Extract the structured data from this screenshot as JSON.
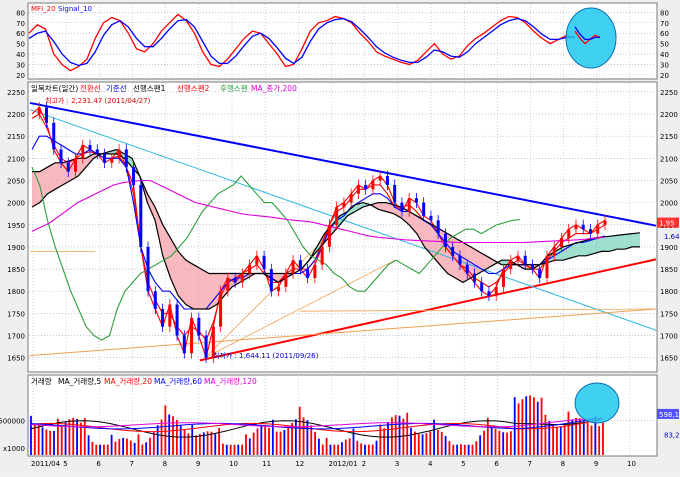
{
  "colors": {
    "panel_bg": "#ffffff",
    "outer_bg": "#efefef",
    "grid": "#9aa6c8",
    "red": "#ff0000",
    "blue": "#0000ff",
    "green": "#2e9e3e",
    "black": "#000000",
    "magenta": "#e000e0",
    "cyan_line": "#30b8e0",
    "orange_line": "#f0a050",
    "cloud_red": "#f5a0a8",
    "cloud_teal": "#7fd4c0",
    "cyan_fill": "#1ec8f0"
  },
  "chart_data": [
    {
      "panel": "oscillator",
      "type": "line",
      "title": "MFI_20  Signal_10",
      "legend": [
        "MFI_20",
        "Signal_10"
      ],
      "ylim": [
        17,
        88
      ],
      "yticks": [
        20,
        30,
        40,
        50,
        60,
        70,
        80
      ],
      "series": [
        {
          "name": "MFI_20",
          "color": "red",
          "values": [
            60,
            68,
            64,
            40,
            30,
            24,
            28,
            35,
            55,
            70,
            75,
            72,
            60,
            45,
            42,
            50,
            62,
            70,
            78,
            72,
            60,
            42,
            30,
            28,
            35,
            45,
            55,
            62,
            60,
            50,
            40,
            28,
            30,
            45,
            62,
            70,
            72,
            76,
            74,
            70,
            60,
            52,
            42,
            38,
            35,
            32,
            30,
            34,
            42,
            50,
            40,
            35,
            38,
            48,
            55,
            60,
            66,
            72,
            76,
            75,
            70,
            62,
            55,
            50,
            54,
            58,
            56
          ]
        },
        {
          "name": "Signal_10",
          "color": "blue",
          "values": [
            55,
            60,
            62,
            52,
            40,
            32,
            29,
            31,
            42,
            58,
            68,
            72,
            66,
            55,
            47,
            47,
            55,
            64,
            72,
            73,
            66,
            52,
            38,
            31,
            31,
            38,
            48,
            57,
            60,
            55,
            46,
            36,
            31,
            37,
            52,
            64,
            70,
            73,
            74,
            71,
            64,
            56,
            47,
            41,
            37,
            34,
            32,
            32,
            37,
            44,
            42,
            38,
            37,
            42,
            50,
            56,
            62,
            68,
            72,
            74,
            72,
            66,
            59,
            54,
            54,
            56,
            56
          ]
        }
      ],
      "annotations": [
        {
          "type": "circle",
          "color": "#1ec8f0"
        }
      ]
    },
    {
      "panel": "price",
      "type": "line",
      "title": "일목차트(일간)  전환선  기준선  선행스팬1  선행스팬2  후행스팬  MA_종가,200",
      "legend": [
        "일목차트(일간)",
        "전환선",
        "기준선",
        "선행스팬1",
        "선행스팬2",
        "후행스팬",
        "MA_종가,200"
      ],
      "ylim": [
        1620,
        2270
      ],
      "yticks": [
        1650,
        1700,
        1750,
        1800,
        1850,
        1900,
        1950,
        2000,
        2050,
        2100,
        2150,
        2200,
        2250
      ],
      "high_label": "최고가 : 2,231.47 (2011/04/27)",
      "low_label": "최저가 : 1,644.11 (2011/09/26)",
      "last_value_labels": [
        "1,95",
        "1.64"
      ],
      "series": [
        {
          "name": "종가",
          "color": "red",
          "values": [
            2200,
            2215,
            2180,
            2120,
            2090,
            2070,
            2100,
            2130,
            2120,
            2110,
            2090,
            2100,
            2120,
            2080,
            2040,
            1900,
            1800,
            1760,
            1720,
            1770,
            1700,
            1660,
            1740,
            1700,
            1650,
            1720,
            1800,
            1830,
            1820,
            1840,
            1860,
            1880,
            1850,
            1800,
            1810,
            1840,
            1870,
            1850,
            1830,
            1860,
            1900,
            1950,
            1990,
            2000,
            2020,
            2040,
            2030,
            2050,
            2060,
            2040,
            2000,
            1980,
            2010,
            2000,
            1970,
            1960,
            1930,
            1900,
            1880,
            1860,
            1840,
            1820,
            1800,
            1790,
            1810,
            1850,
            1870,
            1880,
            1860,
            1850,
            1830,
            1880,
            1900,
            1920,
            1940,
            1950,
            1940,
            1930,
            1950,
            1960
          ]
        },
        {
          "name": "전환선",
          "color": "red",
          "values": [
            2190,
            2200,
            2170,
            2130,
            2100,
            2090,
            2100,
            2110,
            2115,
            2110,
            2100,
            2100,
            2105,
            2080,
            2020,
            1900,
            1820,
            1780,
            1750,
            1750,
            1720,
            1700,
            1720,
            1710,
            1690,
            1730,
            1790,
            1820,
            1830,
            1840,
            1850,
            1860,
            1840,
            1820,
            1820,
            1840,
            1850,
            1850,
            1850,
            1870,
            1910,
            1950,
            1980,
            1990,
            2010,
            2030,
            2030,
            2040,
            2040,
            2020,
            1990,
            1990,
            1995,
            1980,
            1960,
            1950,
            1930,
            1900,
            1880,
            1860,
            1850,
            1830,
            1820,
            1810,
            1820,
            1840,
            1860,
            1870,
            1860,
            1850,
            1850,
            1870,
            1890,
            1910,
            1920,
            1930,
            1930,
            1930,
            1940,
            1950
          ]
        },
        {
          "name": "기준선",
          "color": "blue",
          "values": [
            2120,
            2150,
            2150,
            2140,
            2130,
            2120,
            2110,
            2110,
            2120,
            2110,
            2100,
            2100,
            2100,
            2080,
            2000,
            1900,
            1850,
            1820,
            1800,
            1800,
            1780,
            1760,
            1760,
            1760,
            1760,
            1780,
            1800,
            1820,
            1830,
            1830,
            1840,
            1840,
            1840,
            1830,
            1820,
            1830,
            1840,
            1840,
            1850,
            1870,
            1900,
            1940,
            1960,
            1970,
            1990,
            2000,
            2010,
            2020,
            2020,
            2010,
            1990,
            1980,
            1980,
            1970,
            1960,
            1950,
            1930,
            1910,
            1890,
            1880,
            1870,
            1860,
            1850,
            1840,
            1840,
            1850,
            1860,
            1860,
            1860,
            1860,
            1860,
            1870,
            1880,
            1890,
            1900,
            1910,
            1910,
            1915,
            1920,
            1925
          ]
        },
        {
          "name": "선행스팬1",
          "color": "black",
          "values": [
            1990,
            2000,
            2020,
            2030,
            2040,
            2050,
            2060,
            2080,
            2100,
            2110,
            2115,
            2120,
            2110,
            2100,
            2060,
            2000,
            1960,
            1880,
            1830,
            1790,
            1770,
            1760,
            1760,
            1760,
            1770,
            1790,
            1810,
            1820,
            1830,
            1840,
            1840,
            1830,
            1820,
            1830,
            1840,
            1850,
            1870,
            1900,
            1930,
            1950,
            1970,
            1980,
            1995,
            2000,
            1995,
            1985,
            1980,
            1975,
            1965,
            1950,
            1930,
            1900,
            1880,
            1860,
            1840,
            1830,
            1820,
            1830,
            1840,
            1850,
            1860,
            1870,
            1870,
            1860,
            1850,
            1850,
            1860,
            1880,
            1890,
            1900,
            1905,
            1910,
            1915,
            1920,
            1922,
            1924,
            1926,
            1928,
            1930,
            1932
          ]
        },
        {
          "name": "선행스팬2",
          "color": "black",
          "values": [
            2070,
            2070,
            2080,
            2090,
            2090,
            2095,
            2100,
            2100,
            2110,
            2110,
            2110,
            2110,
            2100,
            2080,
            2060,
            2020,
            1990,
            1950,
            1920,
            1890,
            1870,
            1860,
            1850,
            1840,
            1840,
            1840,
            1840,
            1840,
            1840,
            1840,
            1840,
            1840,
            1840,
            1840,
            1840,
            1850,
            1870,
            1890,
            1910,
            1930,
            1950,
            1970,
            1980,
            1990,
            1995,
            2000,
            2000,
            1995,
            1990,
            1980,
            1970,
            1960,
            1950,
            1940,
            1930,
            1920,
            1910,
            1900,
            1890,
            1880,
            1870,
            1860,
            1860,
            1860,
            1860,
            1860,
            1860,
            1865,
            1870,
            1870,
            1875,
            1880,
            1880,
            1885,
            1890,
            1890,
            1895,
            1895,
            1900,
            1900
          ]
        },
        {
          "name": "후행스팬",
          "color": "green",
          "values": [
            2080,
            2040,
            1960,
            1900,
            1850,
            1800,
            1760,
            1720,
            1700,
            1690,
            1700,
            1760,
            1800,
            1820,
            1840,
            1850,
            1860,
            1870,
            1880,
            1900,
            1920,
            1950,
            1980,
            2000,
            2020,
            2030,
            2040,
            2060,
            2040,
            2020,
            2000,
            2000,
            1980,
            1960,
            1930,
            1900,
            1880,
            1870,
            1860,
            1840,
            1830,
            1810,
            1800,
            1800,
            1820,
            1840,
            1860,
            1870,
            1860,
            1850,
            1840,
            1860,
            1880,
            1900,
            1920,
            1930,
            1940,
            1940,
            1930,
            1940,
            1950,
            1955,
            1960,
            1962
          ]
        },
        {
          "name": "MA_종가,200",
          "color": "magenta",
          "values": [
            1935,
            1945,
            1955,
            1970,
            1985,
            2000,
            2010,
            2020,
            2030,
            2040,
            2045,
            2048,
            2050,
            2050,
            2040,
            2030,
            2020,
            2010,
            2000,
            1995,
            1990,
            1985,
            1980,
            1975,
            1972,
            1970,
            1968,
            1965,
            1962,
            1960,
            1958,
            1955,
            1950,
            1945,
            1940,
            1935,
            1930,
            1925,
            1922,
            1920,
            1918,
            1916,
            1915,
            1914,
            1913,
            1912,
            1911,
            1910,
            1910,
            1910,
            1910,
            1910,
            1910,
            1910,
            1910,
            1911,
            1912,
            1913,
            1914,
            1915,
            1916,
            1918,
            1920,
            1922
          ]
        }
      ],
      "trendlines": [
        {
          "color": "blue",
          "from_value": 2225,
          "to_value": 1948
        },
        {
          "color": "red",
          "from_value": 1644,
          "to_value": 1872
        },
        {
          "color": "cyan_line",
          "from_value": 2210,
          "to_value": 1712
        },
        {
          "color": "orange_line",
          "from_value": 1655,
          "to_value": 1760
        }
      ],
      "x_tick_labels": [
        "2011/04",
        "5",
        "6",
        "7",
        "8",
        "9",
        "10",
        "11",
        "12",
        "2012/01",
        "2",
        "3",
        "4",
        "5",
        "6",
        "7",
        "8",
        "9",
        "10"
      ]
    },
    {
      "panel": "volume",
      "type": "bar",
      "title": "거래량  MA_거래량,5  MA_거래량,20  MA_거래량,60  MA_거래량,120",
      "legend": [
        "거래량",
        "MA_거래량,5",
        "MA_거래량,20",
        "MA_거래량,60",
        "MA_거래량,120"
      ],
      "ylim": [
        0,
        1150000
      ],
      "yticks": [
        500000
      ],
      "ytick_labels": [
        "500000"
      ],
      "axis_unit_label": "x1000",
      "last_value_labels": [
        "598,1",
        "83,2"
      ],
      "annotations": [
        {
          "type": "circle",
          "color": "#1ec8f0"
        }
      ]
    }
  ]
}
